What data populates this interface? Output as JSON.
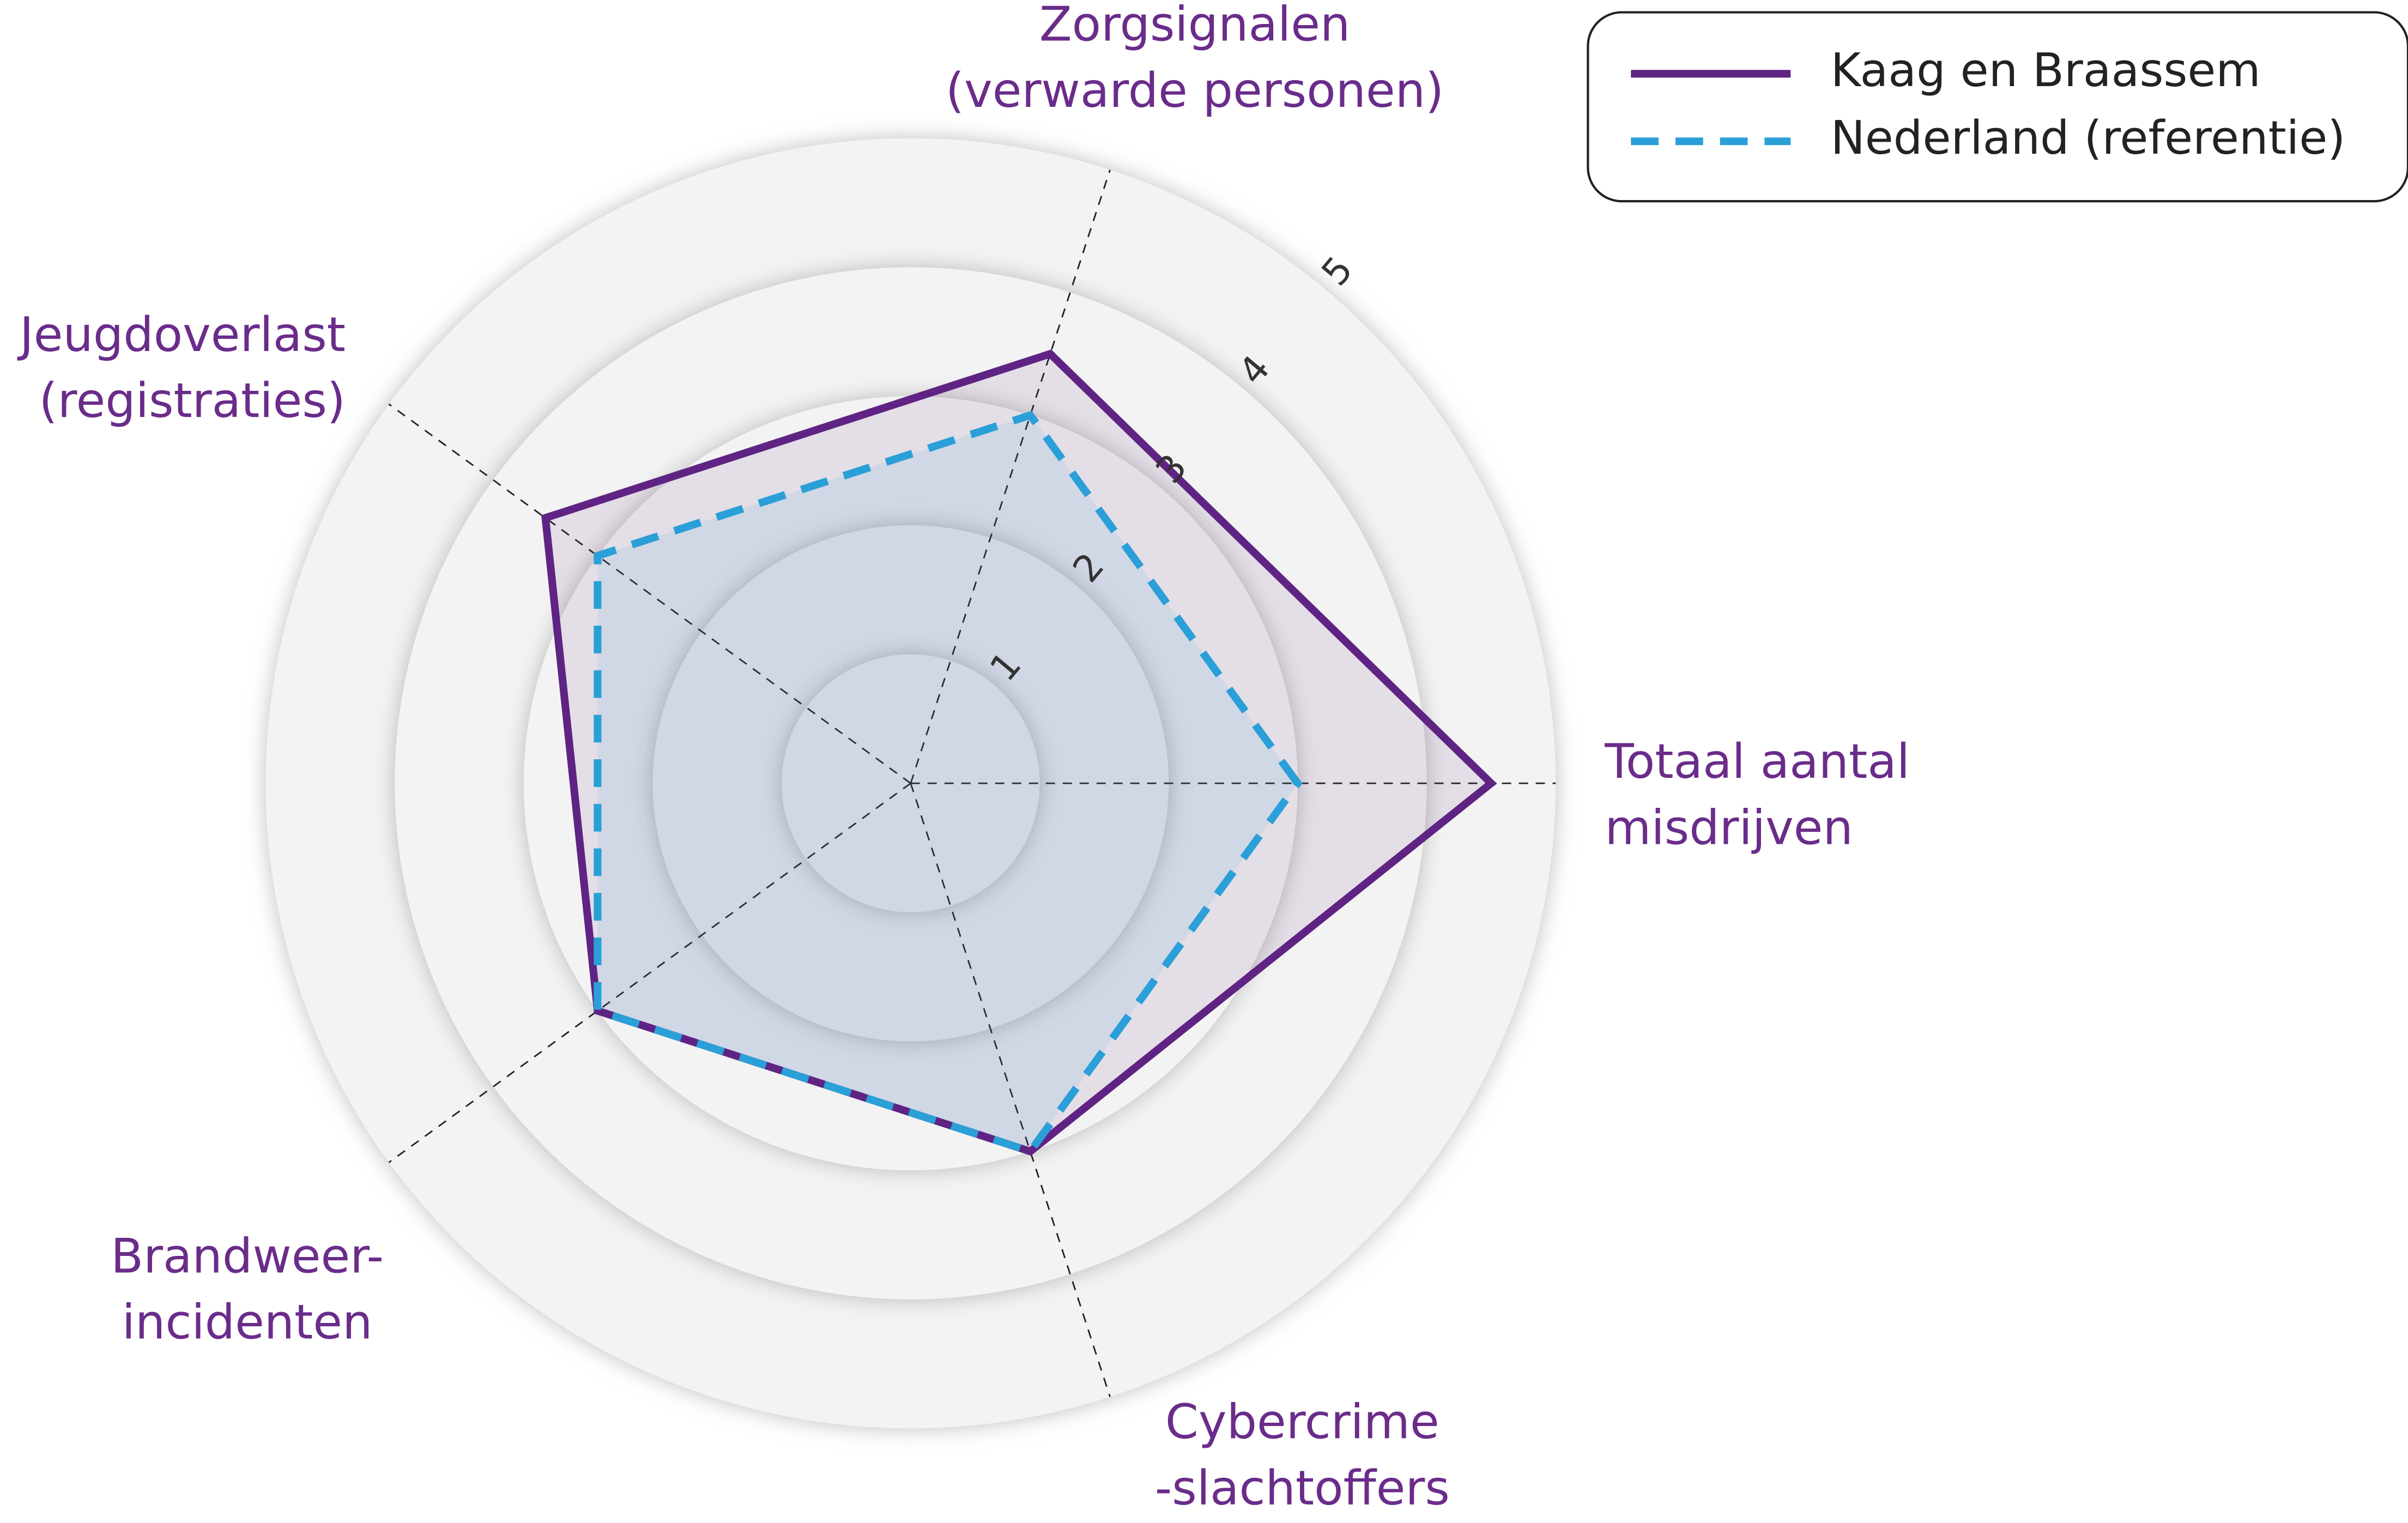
{
  "chart_data": {
    "type": "radar",
    "categories": [
      [
        "Totaal aantal",
        "misdrijven"
      ],
      [
        "Zorgsignalen",
        "(verwarde personen)"
      ],
      [
        "Jeugdoverlast",
        "(registraties)"
      ],
      [
        "Brandweer-",
        "incidenten"
      ],
      [
        "Cybercrime",
        "-slachtoffers"
      ]
    ],
    "series": [
      {
        "name": "Kaag en Braassem",
        "color": "#5f2483",
        "dash": false,
        "values": [
          4.5,
          3.5,
          3.5,
          3,
          3
        ]
      },
      {
        "name": "Nederland (referentie)",
        "color": "#2a9fd8",
        "dash": true,
        "values": [
          3,
          3,
          3,
          3,
          3
        ]
      }
    ],
    "rlim": [
      0,
      5
    ],
    "rticks": [
      1,
      2,
      3,
      4,
      5
    ],
    "legend": "upper right"
  }
}
